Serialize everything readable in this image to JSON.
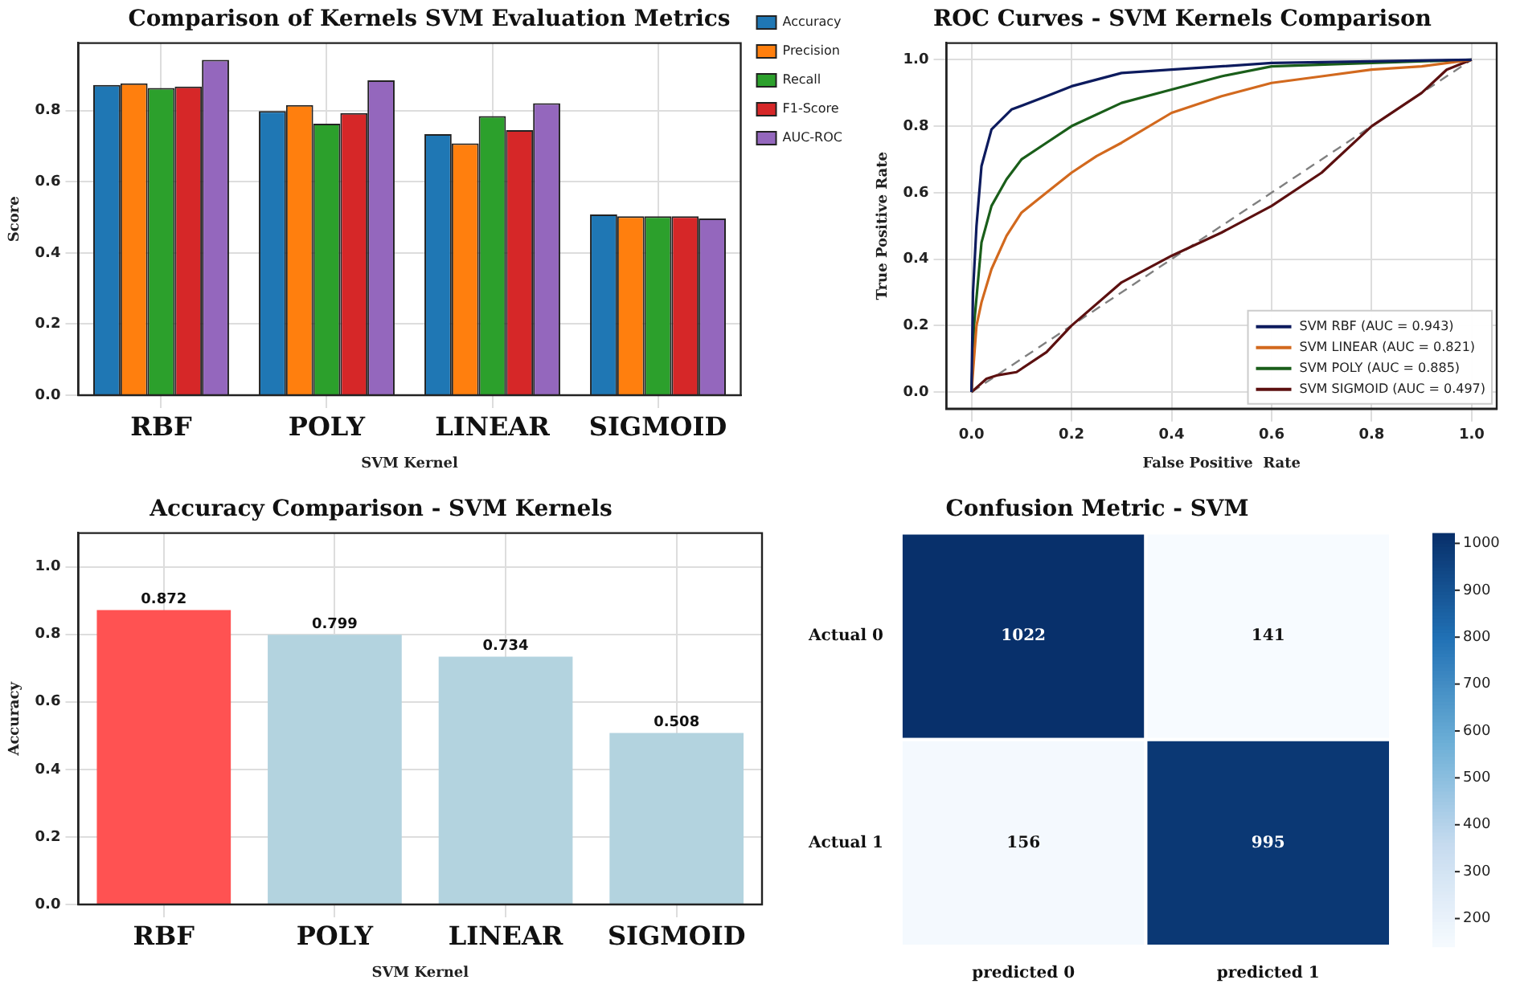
{
  "chart_data": [
    {
      "type": "bar",
      "title": "Comparison of Kernels SVM Evaluation Metrics",
      "xlabel": "SVM Kernel",
      "ylabel": "Score",
      "categories": [
        "RBF",
        "POLY",
        "LINEAR",
        "SIGMOID"
      ],
      "series": [
        {
          "name": "Accuracy",
          "color": "#1f77b4",
          "values": [
            0.872,
            0.799,
            0.734,
            0.508
          ]
        },
        {
          "name": "Precision",
          "color": "#ff7f0e",
          "values": [
            0.877,
            0.816,
            0.708,
            0.503
          ]
        },
        {
          "name": "Recall",
          "color": "#2ca02c",
          "values": [
            0.864,
            0.763,
            0.785,
            0.503
          ]
        },
        {
          "name": "F1-Score",
          "color": "#d62728",
          "values": [
            0.868,
            0.793,
            0.745,
            0.503
          ]
        },
        {
          "name": "AUC-ROC",
          "color": "#9467bd",
          "values": [
            0.943,
            0.885,
            0.821,
            0.497
          ]
        }
      ],
      "ylim": [
        0,
        0.99
      ],
      "yticks": [
        {
          "value": 0,
          "label": "0.0"
        },
        {
          "value": 0.2,
          "label": "0.2"
        },
        {
          "value": 0.4,
          "label": "0.4"
        },
        {
          "value": 0.6,
          "label": "0.6"
        },
        {
          "value": 0.8,
          "label": "0.8"
        }
      ],
      "grid": true,
      "legend": "right"
    },
    {
      "type": "line",
      "title": "ROC Curves - SVM Kernels Comparison",
      "xlabel": "False Positive  Rate",
      "ylabel": "True Positive Rate",
      "series": [
        {
          "name": "SVM RBF (AUC = 0.943)",
          "color": "#0d1b5e",
          "x": [
            0,
            0.003,
            0.01,
            0.02,
            0.04,
            0.08,
            0.15,
            0.2,
            0.3,
            0.4,
            0.6,
            0.8,
            1
          ],
          "values": [
            0,
            0.3,
            0.5,
            0.68,
            0.79,
            0.85,
            0.89,
            0.92,
            0.96,
            0.97,
            0.99,
            0.995,
            1
          ]
        },
        {
          "name": "SVM LINEAR (AUC = 0.821)",
          "color": "#d2691e",
          "x": [
            0,
            0.01,
            0.02,
            0.04,
            0.07,
            0.1,
            0.15,
            0.2,
            0.25,
            0.3,
            0.4,
            0.5,
            0.6,
            0.7,
            0.8,
            0.9,
            1
          ],
          "values": [
            0,
            0.2,
            0.27,
            0.37,
            0.47,
            0.54,
            0.6,
            0.66,
            0.71,
            0.75,
            0.84,
            0.89,
            0.93,
            0.95,
            0.97,
            0.98,
            1
          ]
        },
        {
          "name": "SVM POLY (AUC = 0.885)",
          "color": "#1a5e1a",
          "x": [
            0,
            0.005,
            0.02,
            0.04,
            0.07,
            0.1,
            0.15,
            0.2,
            0.3,
            0.4,
            0.5,
            0.6,
            0.8,
            1
          ],
          "values": [
            0,
            0.2,
            0.45,
            0.56,
            0.64,
            0.7,
            0.75,
            0.8,
            0.87,
            0.91,
            0.95,
            0.98,
            0.99,
            1
          ]
        },
        {
          "name": "SVM SIGMOID (AUC = 0.497)",
          "color": "#5c1010",
          "x": [
            0,
            0.03,
            0.05,
            0.09,
            0.15,
            0.2,
            0.3,
            0.4,
            0.5,
            0.6,
            0.7,
            0.8,
            0.9,
            0.95,
            1
          ],
          "values": [
            0,
            0.04,
            0.05,
            0.06,
            0.12,
            0.2,
            0.33,
            0.41,
            0.48,
            0.56,
            0.66,
            0.8,
            0.9,
            0.97,
            1
          ]
        },
        {
          "color": "#808080",
          "line_style": "dashed",
          "x": [
            0,
            1
          ],
          "values": [
            0,
            1
          ]
        }
      ],
      "xlim": [
        -0.05,
        1.05
      ],
      "ylim": [
        -0.05,
        1.05
      ],
      "xticks": [
        {
          "value": 0,
          "label": "0.0"
        },
        {
          "value": 0.2,
          "label": "0.2"
        },
        {
          "value": 0.4,
          "label": "0.4"
        },
        {
          "value": 0.6,
          "label": "0.6"
        },
        {
          "value": 0.8,
          "label": "0.8"
        },
        {
          "value": 1,
          "label": "1.0"
        }
      ],
      "yticks": [
        {
          "value": 0,
          "label": "0.0"
        },
        {
          "value": 0.2,
          "label": "0.2"
        },
        {
          "value": 0.4,
          "label": "0.4"
        },
        {
          "value": 0.6,
          "label": "0.6"
        },
        {
          "value": 0.8,
          "label": "0.8"
        },
        {
          "value": 1,
          "label": "1.0"
        }
      ],
      "grid": true,
      "legend": "bottom right"
    },
    {
      "type": "bar",
      "title": "Accuracy Comparison - SVM Kernels",
      "xlabel": "SVM Kernel",
      "ylabel": "Accuracy",
      "categories": [
        "RBF",
        "POLY",
        "LINEAR",
        "SIGMOID"
      ],
      "values": [
        0.872,
        0.799,
        0.734,
        0.508
      ],
      "colors": [
        "#ff5252",
        "#b3d3df",
        "#b3d3df",
        "#b3d3df"
      ],
      "ylim": [
        0,
        1.1
      ],
      "yticks": [
        {
          "value": 0,
          "label": "0.0"
        },
        {
          "value": 0.2,
          "label": "0.2"
        },
        {
          "value": 0.4,
          "label": "0.4"
        },
        {
          "value": 0.6,
          "label": "0.6"
        },
        {
          "value": 0.8,
          "label": "0.8"
        },
        {
          "value": 1,
          "label": "1.0"
        }
      ],
      "grid": true,
      "data_labels": true
    },
    {
      "type": "heatmap",
      "title": "Confusion Metric - SVM",
      "categories": [
        "predicted 0",
        "predicted 1"
      ],
      "y_categories": [
        "Actual 0",
        "Actual 1"
      ],
      "cells": [
        [
          1022,
          141
        ],
        [
          156,
          995
        ]
      ],
      "clim": [
        141,
        1022
      ],
      "cticks": [
        200,
        300,
        400,
        500,
        600,
        700,
        800,
        900,
        1000
      ],
      "data_labels": true
    }
  ]
}
